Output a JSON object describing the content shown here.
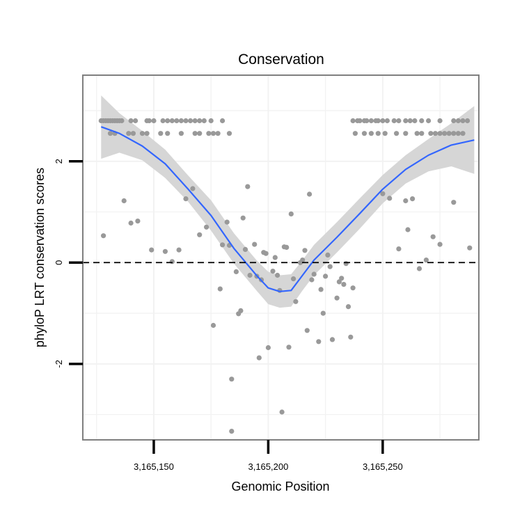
{
  "chart_data": {
    "type": "scatter",
    "title": "Conservation",
    "xlabel": "Genomic Position",
    "ylabel": "phyloP LRT conservation scores",
    "xlim": [
      3165119,
      3165292
    ],
    "ylim": [
      -3.5,
      3.7
    ],
    "x_ticks": [
      {
        "value": 3165150,
        "label": "3,165,150"
      },
      {
        "value": 3165200,
        "label": "3,165,200"
      },
      {
        "value": 3165250,
        "label": "3,165,250"
      }
    ],
    "y_ticks": [
      {
        "value": -2,
        "label": "-2"
      },
      {
        "value": 0,
        "label": "0"
      },
      {
        "value": 2,
        "label": "2"
      }
    ],
    "grid": true,
    "reference_line": {
      "y": 0,
      "style": "dashed"
    },
    "colors": {
      "points": "#999999",
      "smooth_line": "#3366ff",
      "confidence_band": "#d4d4d4",
      "grid": "#f2f2f2",
      "panel_border": "#7f7f7f",
      "reference_line": "#000000"
    },
    "series": [
      {
        "name": "observed scores",
        "points": [
          [
            3165127,
            2.8
          ],
          [
            3165128,
            2.8
          ],
          [
            3165129,
            2.8
          ],
          [
            3165130,
            2.8
          ],
          [
            3165131,
            2.8
          ],
          [
            3165132,
            2.8
          ],
          [
            3165133,
            2.8
          ],
          [
            3165134,
            2.8
          ],
          [
            3165135,
            2.8
          ],
          [
            3165136,
            2.8
          ],
          [
            3165140,
            2.8
          ],
          [
            3165142,
            2.8
          ],
          [
            3165147,
            2.8
          ],
          [
            3165148,
            2.8
          ],
          [
            3165150,
            2.8
          ],
          [
            3165154,
            2.8
          ],
          [
            3165156,
            2.8
          ],
          [
            3165158,
            2.8
          ],
          [
            3165160,
            2.8
          ],
          [
            3165162,
            2.8
          ],
          [
            3165164,
            2.8
          ],
          [
            3165166,
            2.8
          ],
          [
            3165168,
            2.8
          ],
          [
            3165170,
            2.8
          ],
          [
            3165172,
            2.8
          ],
          [
            3165175,
            2.8
          ],
          [
            3165180,
            2.8
          ],
          [
            3165131,
            2.55
          ],
          [
            3165133,
            2.55
          ],
          [
            3165139,
            2.55
          ],
          [
            3165141,
            2.55
          ],
          [
            3165145,
            2.55
          ],
          [
            3165147,
            2.55
          ],
          [
            3165153,
            2.55
          ],
          [
            3165156,
            2.55
          ],
          [
            3165162,
            2.55
          ],
          [
            3165168,
            2.55
          ],
          [
            3165170,
            2.55
          ],
          [
            3165174,
            2.55
          ],
          [
            3165176,
            2.55
          ],
          [
            3165178,
            2.55
          ],
          [
            3165183,
            2.55
          ],
          [
            3165237,
            2.8
          ],
          [
            3165239,
            2.8
          ],
          [
            3165240,
            2.8
          ],
          [
            3165242,
            2.8
          ],
          [
            3165243,
            2.8
          ],
          [
            3165245,
            2.8
          ],
          [
            3165247,
            2.8
          ],
          [
            3165248,
            2.8
          ],
          [
            3165250,
            2.8
          ],
          [
            3165252,
            2.8
          ],
          [
            3165255,
            2.8
          ],
          [
            3165257,
            2.8
          ],
          [
            3165260,
            2.8
          ],
          [
            3165262,
            2.8
          ],
          [
            3165264,
            2.8
          ],
          [
            3165267,
            2.8
          ],
          [
            3165270,
            2.8
          ],
          [
            3165275,
            2.8
          ],
          [
            3165281,
            2.8
          ],
          [
            3165283,
            2.8
          ],
          [
            3165285,
            2.8
          ],
          [
            3165287,
            2.8
          ],
          [
            3165238,
            2.55
          ],
          [
            3165242,
            2.55
          ],
          [
            3165245,
            2.55
          ],
          [
            3165248,
            2.55
          ],
          [
            3165251,
            2.55
          ],
          [
            3165256,
            2.55
          ],
          [
            3165260,
            2.55
          ],
          [
            3165265,
            2.55
          ],
          [
            3165267,
            2.55
          ],
          [
            3165271,
            2.55
          ],
          [
            3165273,
            2.55
          ],
          [
            3165275,
            2.55
          ],
          [
            3165277,
            2.55
          ],
          [
            3165279,
            2.55
          ],
          [
            3165281,
            2.55
          ],
          [
            3165283,
            2.55
          ],
          [
            3165285,
            2.55
          ],
          [
            3165128,
            0.53
          ],
          [
            3165137,
            1.22
          ],
          [
            3165140,
            0.78
          ],
          [
            3165143,
            0.82
          ],
          [
            3165149,
            0.25
          ],
          [
            3165155,
            0.22
          ],
          [
            3165158,
            0.02
          ],
          [
            3165161,
            0.25
          ],
          [
            3165164,
            1.26
          ],
          [
            3165167,
            1.46
          ],
          [
            3165170,
            0.55
          ],
          [
            3165173,
            0.7
          ],
          [
            3165176,
            -1.24
          ],
          [
            3165179,
            -0.52
          ],
          [
            3165180,
            0.35
          ],
          [
            3165182,
            0.8
          ],
          [
            3165183,
            0.34
          ],
          [
            3165184,
            -2.3
          ],
          [
            3165184,
            -3.33
          ],
          [
            3165186,
            -0.18
          ],
          [
            3165187,
            -1.01
          ],
          [
            3165188,
            -0.95
          ],
          [
            3165189,
            0.88
          ],
          [
            3165190,
            0.26
          ],
          [
            3165191,
            1.5
          ],
          [
            3165192,
            -0.25
          ],
          [
            3165194,
            0.36
          ],
          [
            3165195,
            -0.27
          ],
          [
            3165196,
            -1.88
          ],
          [
            3165197,
            -0.34
          ],
          [
            3165198,
            0.2
          ],
          [
            3165199,
            0.18
          ],
          [
            3165200,
            -1.68
          ],
          [
            3165202,
            -0.17
          ],
          [
            3165203,
            0.1
          ],
          [
            3165204,
            -0.25
          ],
          [
            3165205,
            -0.55
          ],
          [
            3165206,
            -2.95
          ],
          [
            3165207,
            0.31
          ],
          [
            3165208,
            0.3
          ],
          [
            3165209,
            -1.67
          ],
          [
            3165210,
            0.96
          ],
          [
            3165211,
            -0.32
          ],
          [
            3165212,
            -0.77
          ],
          [
            3165214,
            0.0
          ],
          [
            3165215,
            0.05
          ],
          [
            3165216,
            0.24
          ],
          [
            3165217,
            -1.34
          ],
          [
            3165218,
            1.35
          ],
          [
            3165219,
            -0.34
          ],
          [
            3165220,
            -0.23
          ],
          [
            3165222,
            -1.56
          ],
          [
            3165223,
            -0.53
          ],
          [
            3165224,
            -1.0
          ],
          [
            3165225,
            -0.27
          ],
          [
            3165226,
            0.15
          ],
          [
            3165227,
            -0.08
          ],
          [
            3165228,
            -1.52
          ],
          [
            3165230,
            -0.7
          ],
          [
            3165231,
            -0.38
          ],
          [
            3165232,
            -0.31
          ],
          [
            3165233,
            -0.43
          ],
          [
            3165234,
            -0.02
          ],
          [
            3165235,
            -0.87
          ],
          [
            3165236,
            -1.47
          ],
          [
            3165237,
            -0.5
          ],
          [
            3165250,
            1.36
          ],
          [
            3165253,
            1.27
          ],
          [
            3165257,
            0.27
          ],
          [
            3165260,
            1.22
          ],
          [
            3165261,
            0.65
          ],
          [
            3165263,
            1.26
          ],
          [
            3165266,
            -0.12
          ],
          [
            3165269,
            0.05
          ],
          [
            3165272,
            0.51
          ],
          [
            3165275,
            0.36
          ],
          [
            3165281,
            1.19
          ],
          [
            3165288,
            0.29
          ]
        ]
      },
      {
        "name": "loess fit",
        "x": [
          3165127,
          3165135,
          3165145,
          3165155,
          3165165,
          3165175,
          3165185,
          3165195,
          3165200,
          3165205,
          3165210,
          3165215,
          3165220,
          3165230,
          3165240,
          3165250,
          3165260,
          3165270,
          3165280,
          3165290
        ],
        "y": [
          2.68,
          2.55,
          2.3,
          1.95,
          1.45,
          0.93,
          0.28,
          -0.26,
          -0.5,
          -0.57,
          -0.55,
          -0.25,
          0.05,
          0.5,
          0.97,
          1.45,
          1.84,
          2.12,
          2.32,
          2.42
        ],
        "lower": [
          2.05,
          2.17,
          2.02,
          1.67,
          1.2,
          0.63,
          -0.02,
          -0.56,
          -0.82,
          -0.89,
          -0.87,
          -0.55,
          -0.25,
          0.2,
          0.67,
          1.17,
          1.56,
          1.8,
          1.9,
          1.75
        ],
        "upper": [
          3.3,
          2.95,
          2.6,
          2.23,
          1.72,
          1.23,
          0.58,
          0.04,
          -0.18,
          -0.25,
          -0.23,
          0.05,
          0.35,
          0.8,
          1.27,
          1.73,
          2.12,
          2.44,
          2.75,
          3.09
        ]
      }
    ]
  }
}
